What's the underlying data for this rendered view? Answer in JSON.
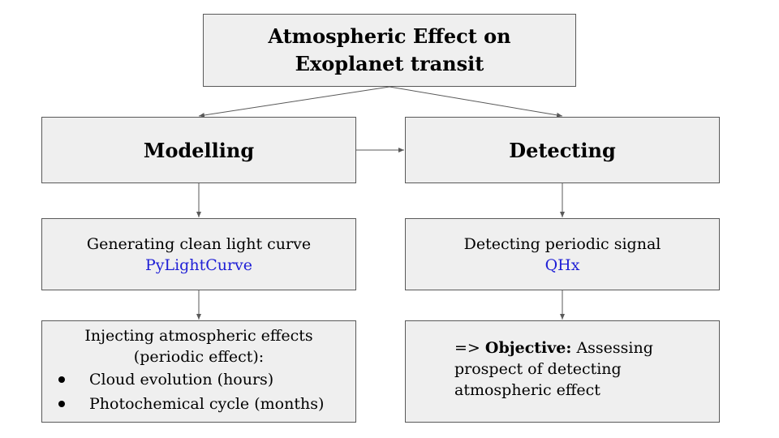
{
  "diagram": {
    "title": "Atmospheric Effect on Exoplanet transit",
    "modelling": {
      "label": "Modelling"
    },
    "detecting": {
      "label": "Detecting"
    },
    "generating": {
      "text": "Generating clean light curve",
      "tool": "PyLightCurve"
    },
    "detect_signal": {
      "text": "Detecting periodic signal",
      "tool": "QHx"
    },
    "inject": {
      "line1": "Injecting atmospheric effects",
      "line2": "(periodic effect):",
      "bullets": [
        "Cloud evolution (hours)",
        "Photochemical cycle (months)"
      ]
    },
    "objective": {
      "prefix": "=> ",
      "label": "Objective:",
      "text_line1": " Assessing",
      "text_line2": "prospect of detecting",
      "text_line3": "atmospheric effect"
    }
  },
  "colors": {
    "box_fill": "#efefef",
    "box_border": "#595959",
    "link": "#1f1fd6",
    "arrow": "#595959"
  }
}
